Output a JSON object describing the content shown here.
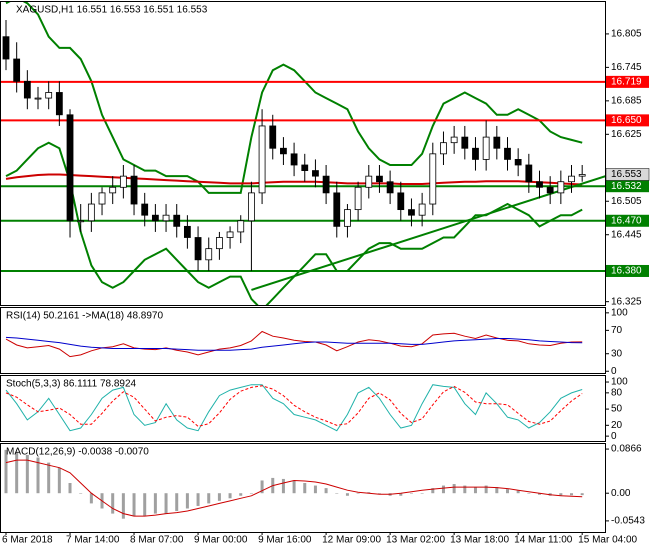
{
  "chart_data": [
    {
      "type": "candlestick",
      "title": "XAGUSD,H1  16.551 16.553 16.551 16.553",
      "categories": [
        "6 Mar 2018",
        null,
        null,
        null,
        null,
        null,
        "7 Mar 14:00",
        null,
        null,
        null,
        null,
        null,
        "8 Mar 07:00",
        null,
        null,
        null,
        null,
        null,
        "9 Mar 00:00",
        null,
        null,
        null,
        null,
        null,
        "9 Mar 16:00",
        null,
        null,
        null,
        null,
        null,
        "12 Mar 09:00",
        null,
        null,
        null,
        null,
        null,
        "13 Mar 02:00",
        null,
        null,
        null,
        null,
        null,
        "13 Mar 18:00",
        null,
        null,
        null,
        null,
        null,
        "14 Mar 11:00",
        null,
        null,
        null,
        null,
        null,
        "15 Mar 04:00"
      ],
      "open": [
        16.8,
        16.76,
        16.72,
        16.69,
        16.69,
        16.7,
        16.66,
        16.47,
        16.47,
        16.5,
        16.52,
        16.53,
        16.55,
        16.5,
        16.48,
        16.47,
        16.48,
        16.46,
        16.44,
        16.4,
        16.42,
        16.44,
        16.45,
        16.47,
        16.52,
        16.64,
        16.6,
        16.59,
        16.57,
        16.56,
        16.55,
        16.52,
        16.46,
        16.49,
        16.53,
        16.55,
        16.54,
        16.52,
        16.49,
        16.48,
        16.5,
        16.59,
        16.61,
        16.62,
        16.6,
        16.58,
        16.62,
        16.6,
        16.58,
        16.57,
        16.54,
        16.53,
        16.52,
        16.54,
        16.55
      ],
      "high": [
        16.83,
        16.79,
        16.74,
        16.71,
        16.72,
        16.72,
        16.67,
        16.5,
        16.52,
        16.53,
        16.55,
        16.57,
        16.57,
        16.52,
        16.5,
        16.5,
        16.5,
        16.48,
        16.46,
        16.44,
        16.45,
        16.46,
        16.48,
        16.54,
        16.67,
        16.66,
        16.62,
        16.61,
        16.59,
        16.58,
        16.57,
        16.54,
        16.5,
        16.54,
        16.57,
        16.57,
        16.56,
        16.54,
        16.51,
        16.52,
        16.61,
        16.63,
        16.64,
        16.64,
        16.62,
        16.65,
        16.64,
        16.62,
        16.6,
        16.59,
        16.56,
        16.55,
        16.56,
        16.57,
        16.57
      ],
      "low": [
        16.74,
        16.7,
        16.67,
        16.67,
        16.67,
        16.64,
        16.44,
        16.45,
        16.45,
        16.48,
        16.5,
        16.51,
        16.48,
        16.46,
        16.45,
        16.45,
        16.44,
        16.42,
        16.38,
        16.38,
        16.4,
        16.42,
        16.43,
        16.38,
        16.5,
        16.58,
        16.57,
        16.55,
        16.54,
        16.53,
        16.5,
        16.44,
        16.44,
        16.47,
        16.51,
        16.52,
        16.5,
        16.47,
        16.46,
        16.46,
        16.48,
        16.57,
        16.59,
        16.58,
        16.56,
        16.56,
        16.58,
        16.56,
        16.55,
        16.52,
        16.51,
        16.5,
        16.5,
        16.52,
        16.54
      ],
      "close": [
        16.76,
        16.72,
        16.69,
        16.69,
        16.7,
        16.66,
        16.47,
        16.47,
        16.5,
        16.52,
        16.53,
        16.55,
        16.5,
        16.48,
        16.47,
        16.48,
        16.46,
        16.44,
        16.4,
        16.42,
        16.44,
        16.45,
        16.47,
        16.52,
        16.64,
        16.6,
        16.59,
        16.57,
        16.56,
        16.55,
        16.52,
        16.46,
        16.49,
        16.53,
        16.55,
        16.54,
        16.52,
        16.49,
        16.48,
        16.5,
        16.59,
        16.61,
        16.62,
        16.6,
        16.58,
        16.62,
        16.6,
        16.58,
        16.57,
        16.54,
        16.53,
        16.52,
        16.54,
        16.55,
        16.553
      ],
      "ylim": [
        16.319,
        16.864
      ],
      "yticks": [
        16.805,
        16.745,
        16.685,
        16.625,
        16.505,
        16.445,
        16.325
      ],
      "overlays": [
        {
          "color": "#008000",
          "values": [
            16.86,
            16.87,
            16.86,
            16.84,
            16.8,
            16.78,
            16.78,
            16.76,
            16.72,
            16.66,
            16.62,
            16.58,
            16.57,
            16.56,
            16.56,
            16.55,
            16.55,
            16.55,
            16.54,
            16.52,
            16.52,
            16.52,
            16.52,
            16.62,
            16.7,
            16.74,
            16.75,
            16.74,
            16.72,
            16.7,
            16.69,
            16.68,
            16.67,
            16.63,
            16.6,
            16.58,
            16.57,
            16.57,
            16.57,
            16.59,
            16.64,
            16.68,
            16.69,
            16.7,
            16.69,
            16.68,
            16.66,
            16.66,
            16.67,
            16.66,
            16.65,
            16.63,
            16.62,
            16.615,
            16.61
          ]
        },
        {
          "color": "#008000",
          "values": [
            16.55,
            16.56,
            16.58,
            16.6,
            16.61,
            16.6,
            16.54,
            16.45,
            16.39,
            16.36,
            16.35,
            16.36,
            16.38,
            16.4,
            16.41,
            16.42,
            16.4,
            16.38,
            16.36,
            16.35,
            16.36,
            16.37,
            16.37,
            16.33,
            16.31,
            16.33,
            16.35,
            16.37,
            16.39,
            16.41,
            16.41,
            16.38,
            16.38,
            16.4,
            16.42,
            16.43,
            16.43,
            16.42,
            16.42,
            16.42,
            16.43,
            16.44,
            16.44,
            16.46,
            16.48,
            16.48,
            16.49,
            16.5,
            16.49,
            16.48,
            16.46,
            16.47,
            16.48,
            16.48,
            16.49
          ]
        },
        {
          "color": "#cc0000",
          "values": [
            16.545,
            16.548,
            16.55,
            16.552,
            16.553,
            16.553,
            16.552,
            16.551,
            16.55,
            16.549,
            16.548,
            16.547,
            16.546,
            16.545,
            16.544,
            16.543,
            16.542,
            16.541,
            16.54,
            16.539,
            16.538,
            16.537,
            16.537,
            16.537,
            16.538,
            16.539,
            16.54,
            16.54,
            16.54,
            16.54,
            16.539,
            16.538,
            16.537,
            16.537,
            16.537,
            16.537,
            16.537,
            16.536,
            16.536,
            16.536,
            16.537,
            16.538,
            16.539,
            16.54,
            16.54,
            16.541,
            16.541,
            16.541,
            16.541,
            16.54,
            16.539,
            16.538,
            16.537,
            16.536,
            16.535
          ]
        }
      ],
      "levels": [
        {
          "value": 16.719,
          "color": "#ff0000"
        },
        {
          "value": 16.65,
          "label": "16.650",
          "color": "#ff0000"
        },
        {
          "value": 16.532,
          "color": "#008000"
        },
        {
          "value": 16.47,
          "label": "16.470",
          "color": "#008000"
        },
        {
          "value": 16.38,
          "label": "16.380",
          "color": "#008000"
        }
      ],
      "last": 16.553,
      "trendline": {
        "x": [
          23,
          56.5
        ],
        "y": [
          16.346,
          16.552
        ],
        "color": "#008000"
      }
    },
    {
      "type": "line",
      "title": "RSI(14) 50.2161 ->MA(18) 48.8970",
      "ylim": [
        -3,
        110
      ],
      "yticks": [
        100,
        70,
        30,
        0
      ],
      "series": [
        {
          "color": "#cc0000",
          "values": [
            55,
            45,
            40,
            42,
            44,
            38,
            25,
            28,
            35,
            40,
            42,
            47,
            40,
            38,
            37,
            40,
            36,
            33,
            28,
            33,
            38,
            40,
            44,
            52,
            68,
            60,
            57,
            53,
            51,
            50,
            45,
            35,
            42,
            50,
            54,
            52,
            48,
            43,
            42,
            47,
            62,
            64,
            65,
            60,
            56,
            62,
            57,
            53,
            52,
            47,
            45,
            44,
            48,
            50,
            50.2161
          ]
        },
        {
          "color": "#0000cc",
          "values": [
            58,
            57,
            55,
            53,
            51,
            49,
            46,
            43,
            41,
            40,
            39,
            39,
            39,
            39,
            39,
            39,
            38,
            37,
            36,
            36,
            36,
            36,
            37,
            38,
            41,
            43,
            45,
            47,
            49,
            50,
            50,
            49,
            48,
            48,
            48,
            48,
            48,
            47,
            46,
            46,
            48,
            50,
            52,
            53,
            54,
            55,
            56,
            56,
            55,
            54,
            52,
            51,
            50,
            49,
            48.897
          ]
        }
      ]
    },
    {
      "type": "line",
      "title": "Stoch(5,3,3) 86.1111 78.8924",
      "ylim": [
        -9,
        113
      ],
      "yticks": [
        100,
        80,
        50,
        20,
        0
      ],
      "series": [
        {
          "color": "#20b2aa",
          "dashed": false,
          "values": [
            85,
            60,
            30,
            45,
            70,
            40,
            10,
            15,
            40,
            70,
            85,
            90,
            40,
            20,
            25,
            60,
            30,
            15,
            10,
            45,
            75,
            85,
            90,
            95,
            95,
            70,
            60,
            40,
            35,
            30,
            20,
            10,
            40,
            80,
            90,
            70,
            40,
            15,
            20,
            60,
            95,
            92,
            90,
            60,
            40,
            80,
            60,
            35,
            30,
            15,
            25,
            45,
            70,
            80,
            86.1111
          ]
        },
        {
          "color": "#ff0000",
          "dashed": true,
          "values": [
            80,
            72,
            58,
            45,
            48,
            52,
            40,
            22,
            22,
            42,
            65,
            82,
            72,
            50,
            28,
            35,
            38,
            35,
            18,
            23,
            43,
            68,
            83,
            90,
            93,
            87,
            75,
            57,
            45,
            35,
            28,
            20,
            23,
            43,
            70,
            80,
            67,
            42,
            25,
            32,
            58,
            82,
            92,
            81,
            63,
            60,
            60,
            58,
            42,
            27,
            22,
            28,
            47,
            65,
            78.8924
          ]
        }
      ]
    },
    {
      "type": "macd",
      "title": "MACD(12,26,9) -0.0038 -0.0070",
      "ylim": [
        -0.0761,
        0.0985
      ],
      "yticks": [
        0.0866,
        {
          "value": 0,
          "label": "0.00"
        },
        -0.0543
      ],
      "histogram": {
        "color": "#a0a0a0",
        "values": [
          0.085,
          0.08,
          0.075,
          0.07,
          0.06,
          0.05,
          0.02,
          0.0,
          -0.02,
          -0.03,
          -0.04,
          -0.05,
          -0.045,
          -0.045,
          -0.04,
          -0.04,
          -0.035,
          -0.03,
          -0.025,
          -0.02,
          -0.015,
          -0.01,
          -0.005,
          0.0,
          0.025,
          0.03,
          0.028,
          0.025,
          0.02,
          0.015,
          0.01,
          0.0,
          -0.005,
          0.0,
          0.002,
          0.0,
          -0.005,
          -0.005,
          0.0,
          0.0,
          0.01,
          0.015,
          0.018,
          0.015,
          0.012,
          0.015,
          0.012,
          0.008,
          0.005,
          0.0,
          -0.003,
          -0.005,
          -0.005,
          -0.004,
          -0.0038
        ]
      },
      "signal": {
        "color": "#cc0000",
        "values": [
          0.06,
          0.065,
          0.065,
          0.06,
          0.055,
          0.05,
          0.04,
          0.02,
          0.0,
          -0.015,
          -0.03,
          -0.04,
          -0.045,
          -0.045,
          -0.043,
          -0.04,
          -0.038,
          -0.035,
          -0.03,
          -0.025,
          -0.02,
          -0.015,
          -0.01,
          -0.005,
          0.005,
          0.015,
          0.02,
          0.025,
          0.024,
          0.022,
          0.018,
          0.012,
          0.006,
          0.002,
          0.0,
          -0.002,
          -0.002,
          0.0,
          0.003,
          0.006,
          0.008,
          0.01,
          0.012,
          0.012,
          0.012,
          0.012,
          0.011,
          0.009,
          0.006,
          0.003,
          0.0,
          -0.003,
          -0.005,
          -0.006,
          -0.007
        ]
      }
    }
  ]
}
